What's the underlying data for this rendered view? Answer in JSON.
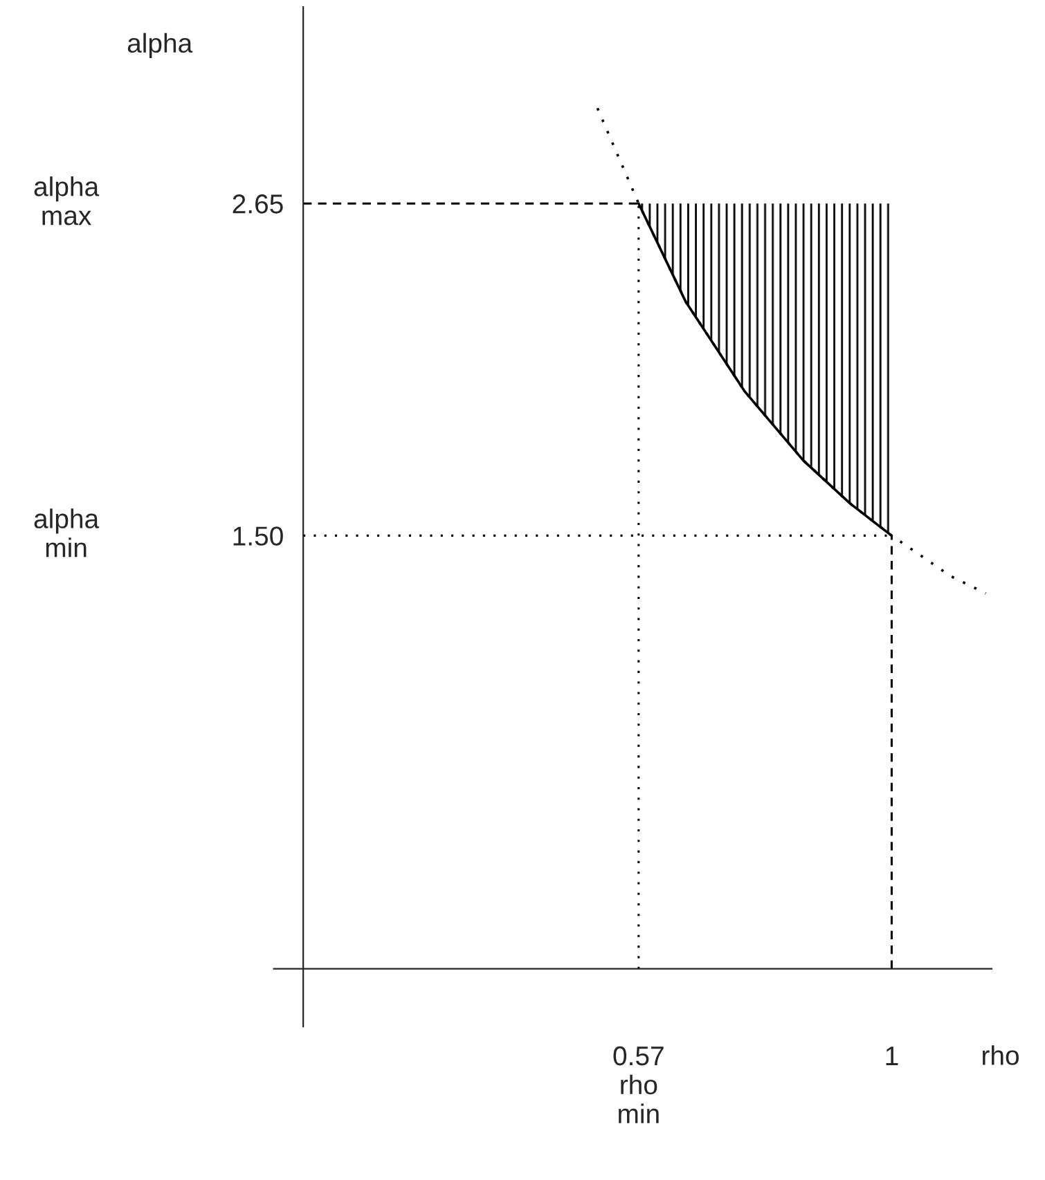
{
  "chart_data": {
    "type": "line",
    "xlabel": "rho",
    "ylabel": "alpha",
    "xlim": [
      -0.05,
      1.17
    ],
    "ylim": [
      -0.2,
      3.33
    ],
    "xticks": [
      {
        "value": 0.57,
        "label": "0.57"
      },
      1
    ],
    "yticks": [
      {
        "value": 1.5,
        "label": "1.50"
      },
      2.65
    ],
    "series": [
      {
        "color": "#000000",
        "line_style": "dotted",
        "x": [
          0.5,
          0.57,
          0.65,
          0.75,
          0.85,
          0.93,
          1.0,
          1.1,
          1.16
        ],
        "values": [
          2.98,
          2.65,
          2.31,
          2.0,
          1.76,
          1.61,
          1.5,
          1.36,
          1.3
        ]
      },
      {
        "color": "#000000",
        "line_style": "solid",
        "x": [
          0.57,
          0.65,
          0.75,
          0.85,
          0.93,
          1.0
        ],
        "values": [
          2.65,
          2.31,
          2.0,
          1.76,
          1.61,
          1.5
        ],
        "lower": [
          2.65,
          2.31,
          2.0,
          1.76,
          1.61,
          1.5
        ],
        "upper": [
          2.65,
          2.65,
          2.65,
          2.65,
          2.65,
          2.65
        ]
      }
    ],
    "ref_lines": [
      {
        "axis": "y",
        "value": 2.65,
        "line_style": "dashed",
        "color": "#000000"
      },
      {
        "axis": "y",
        "value": 1.5,
        "line_style": "dotted",
        "color": "#000000"
      },
      {
        "axis": "x",
        "value": 0.57,
        "line_style": "dotted",
        "color": "#000000"
      },
      {
        "axis": "x",
        "value": 1,
        "line_style": "dashed",
        "color": "#000000"
      }
    ],
    "annotations": [
      "alpha\nmax",
      "alpha\nmin",
      "rho\nmin"
    ],
    "grid": false,
    "legend": false
  }
}
